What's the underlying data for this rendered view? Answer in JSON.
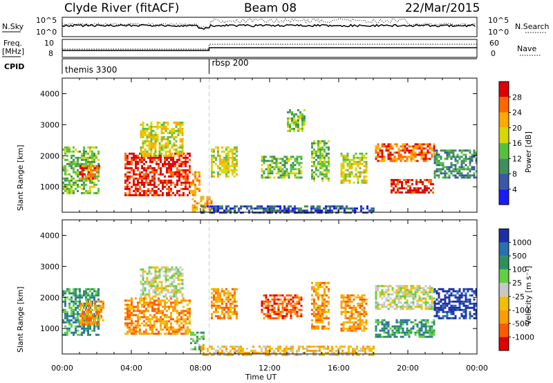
{
  "header": {
    "station": "Clyde River (fitACF)",
    "beam": "Beam 08",
    "date": "22/Mar/2015"
  },
  "meta_labels": {
    "nsky": "N.Sky",
    "freq_line1": "Freq.",
    "freq_line2": "[MHz]",
    "cpid": "CPID",
    "nsearch": "N.Search",
    "nave": "Nave",
    "nsky_top": "10^5",
    "nsky_bottom": "10^0",
    "nsearch_top": "10^5",
    "nsearch_bottom": "10^0",
    "freq_top": "10",
    "freq_bottom": "8",
    "nave_top": "60",
    "nave_bottom": "0"
  },
  "cpid_segments": [
    {
      "label": "themis 3300",
      "start_hour": 0.0
    },
    {
      "label": "rbsp 200",
      "start_hour": 8.5
    }
  ],
  "colors": {
    "power_scale": [
      "#1a1aff",
      "#3a57a8",
      "#3f8f5a",
      "#55c23b",
      "#d8d800",
      "#ffaa00",
      "#ff6600",
      "#e00000"
    ],
    "velocity_scale": [
      "#e00000",
      "#ff5a00",
      "#ff9a00",
      "#f0c000",
      "#c8c8c8",
      "#60d040",
      "#2f8f60",
      "#2a6fb0",
      "#1c2fa8"
    ]
  },
  "chart_data": [
    {
      "type": "heatmap",
      "name": "power",
      "title": "",
      "xlabel": "",
      "ylabel": "Slant Range [km]",
      "xlim": [
        0,
        24
      ],
      "ylim": [
        180,
        4500
      ],
      "x_ticks": [
        "00:00",
        "04:00",
        "08:00",
        "12:00",
        "16:00",
        "20:00",
        "00:00"
      ],
      "y_ticks": [
        1000,
        2000,
        3000,
        4000
      ],
      "colorbar": {
        "label": "Power [dB]",
        "range": [
          0,
          32
        ],
        "ticks": [
          "28",
          "24",
          "20",
          "16",
          "12",
          "8",
          "4"
        ]
      },
      "echo_regions": [
        {
          "t0": 0.0,
          "t1": 2.1,
          "r0": 800,
          "r1": 2300,
          "level": 3
        },
        {
          "t0": 1.0,
          "t1": 2.2,
          "r0": 1250,
          "r1": 1700,
          "level": 6
        },
        {
          "t0": 3.6,
          "t1": 7.4,
          "r0": 750,
          "r1": 2100,
          "level": 7
        },
        {
          "t0": 4.5,
          "t1": 7.0,
          "r0": 2000,
          "r1": 3100,
          "level": 4
        },
        {
          "t0": 7.4,
          "t1": 8.0,
          "r0": 700,
          "r1": 1500,
          "level": 5
        },
        {
          "t0": 7.5,
          "t1": 8.6,
          "r0": 200,
          "r1": 700,
          "level": 5
        },
        {
          "t0": 8.6,
          "t1": 10.1,
          "r0": 1300,
          "r1": 2300,
          "level": 4
        },
        {
          "t0": 11.5,
          "t1": 13.8,
          "r0": 1300,
          "r1": 2000,
          "level": 3
        },
        {
          "t0": 13.0,
          "t1": 14.0,
          "r0": 2800,
          "r1": 3500,
          "level": 3
        },
        {
          "t0": 14.4,
          "t1": 15.4,
          "r0": 1200,
          "r1": 2500,
          "level": 3
        },
        {
          "t0": 16.1,
          "t1": 17.6,
          "r0": 1100,
          "r1": 2100,
          "level": 4
        },
        {
          "t0": 18.1,
          "t1": 21.5,
          "r0": 1800,
          "r1": 2400,
          "level": 6
        },
        {
          "t0": 19.0,
          "t1": 21.5,
          "r0": 800,
          "r1": 1250,
          "level": 7
        },
        {
          "t0": 21.5,
          "t1": 24.0,
          "r0": 1300,
          "r1": 2200,
          "level": 2
        },
        {
          "t0": 8.0,
          "t1": 18.0,
          "r0": 180,
          "r1": 400,
          "level": 1
        }
      ]
    },
    {
      "type": "heatmap",
      "name": "velocity",
      "title": "",
      "xlabel": "Time UT",
      "ylabel": "Slant Range [km]",
      "xlim": [
        0,
        24
      ],
      "ylim": [
        180,
        4500
      ],
      "x_ticks": [
        "00:00",
        "04:00",
        "08:00",
        "12:00",
        "16:00",
        "20:00",
        "00:00"
      ],
      "y_ticks": [
        1000,
        2000,
        3000,
        4000
      ],
      "colorbar": {
        "label": "Velocity [m s⁻¹]",
        "range": [
          -1000,
          1000
        ],
        "ticks": [
          "1000",
          "500",
          "100",
          "25",
          "-25",
          "-100",
          "-500",
          "-1000"
        ]
      },
      "echo_regions": [
        {
          "t0": 0.0,
          "t1": 2.1,
          "r0": 800,
          "r1": 2300,
          "level": 6
        },
        {
          "t0": 1.0,
          "t1": 2.4,
          "r0": 1100,
          "r1": 1900,
          "level": 2
        },
        {
          "t0": 3.6,
          "t1": 7.4,
          "r0": 800,
          "r1": 2000,
          "level": 2
        },
        {
          "t0": 4.5,
          "t1": 7.0,
          "r0": 2000,
          "r1": 3000,
          "level": 4
        },
        {
          "t0": 7.4,
          "t1": 8.2,
          "r0": 300,
          "r1": 900,
          "level": 5
        },
        {
          "t0": 8.6,
          "t1": 10.1,
          "r0": 1300,
          "r1": 2300,
          "level": 2
        },
        {
          "t0": 11.5,
          "t1": 13.8,
          "r0": 1300,
          "r1": 2100,
          "level": 1
        },
        {
          "t0": 14.4,
          "t1": 15.4,
          "r0": 1000,
          "r1": 2500,
          "level": 2
        },
        {
          "t0": 16.1,
          "t1": 17.6,
          "r0": 900,
          "r1": 2100,
          "level": 2
        },
        {
          "t0": 18.1,
          "t1": 21.5,
          "r0": 1600,
          "r1": 2400,
          "level": 4
        },
        {
          "t0": 18.1,
          "t1": 21.5,
          "r0": 700,
          "r1": 1300,
          "level": 6
        },
        {
          "t0": 21.5,
          "t1": 24.0,
          "r0": 1300,
          "r1": 2300,
          "level": 8
        },
        {
          "t0": 8.0,
          "t1": 18.0,
          "r0": 180,
          "r1": 450,
          "level": 3
        }
      ]
    }
  ]
}
